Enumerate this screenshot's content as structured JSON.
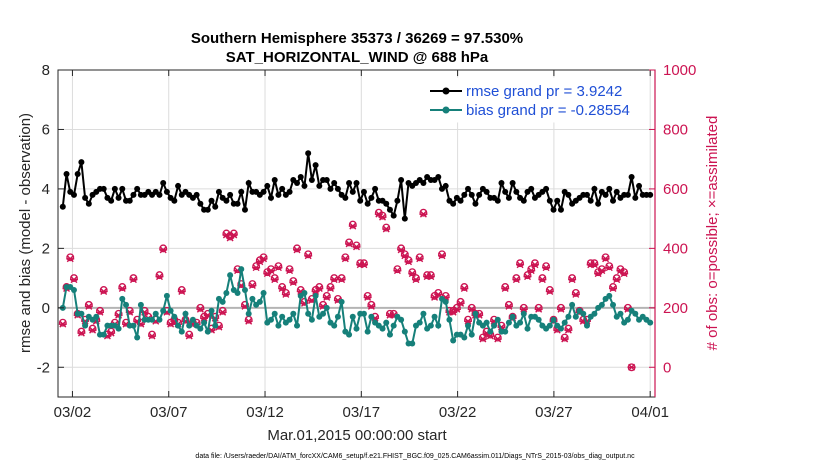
{
  "chart_data": {
    "type": "line",
    "title": "Southern Hemisphere 35373 / 36269 = 97.530%",
    "subtitle": "SAT_HORIZONTAL_WIND @ 688 hPa",
    "xlabel": "Mar.01,2015 00:00:00 start",
    "ylabel": "rmse and bias (model - observation)",
    "ylabel_right": "# of obs: o=possible; ×=assimilated",
    "footer": "data file: /Users/raeder/DAI/ATM_forcXX/CAM6_setup/f.e21.FHIST_BGC.f09_025.CAM6assim.011/Diags_NTrS_2015-03/obs_diag_output.nc",
    "x_tick_labels": [
      "03/02",
      "03/07",
      "03/12",
      "03/17",
      "03/22",
      "03/27",
      "04/01"
    ],
    "x_tick_days": [
      1,
      6,
      11,
      16,
      21,
      26,
      31
    ],
    "xlim": [
      0.25,
      31.25
    ],
    "ylim": [
      -3,
      8
    ],
    "y_ticks": [
      "-2",
      "0",
      "2",
      "4",
      "6",
      "8"
    ],
    "ylim_right": [
      -100,
      1000
    ],
    "y_ticks_right": [
      "0",
      "200",
      "400",
      "600",
      "800",
      "1000"
    ],
    "grid": true,
    "legend_position": "top-right",
    "zero_line": 0,
    "series": [
      {
        "name": "rmse grand pr = 3.9242",
        "color": "#000000",
        "axis": "left",
        "marker": "circle",
        "values": [
          3.4,
          4.5,
          3.9,
          3.8,
          4.5,
          4.9,
          3.7,
          3.5,
          3.8,
          3.9,
          4.0,
          4.0,
          3.7,
          3.6,
          4.0,
          3.7,
          4.0,
          3.6,
          3.6,
          3.8,
          4.0,
          3.8,
          3.8,
          3.9,
          3.8,
          3.9,
          3.8,
          4.2,
          3.9,
          3.7,
          3.6,
          4.1,
          3.8,
          3.9,
          3.8,
          3.7,
          3.8,
          3.5,
          3.3,
          3.3,
          3.6,
          3.4,
          3.9,
          3.7,
          3.6,
          3.8,
          3.5,
          3.5,
          3.9,
          3.3,
          4.2,
          3.9,
          3.9,
          3.8,
          3.9,
          4.1,
          3.7,
          4.3,
          3.8,
          4.0,
          3.8,
          3.9,
          4.3,
          4.2,
          4.4,
          4.1,
          5.2,
          4.3,
          4.8,
          4.1,
          4.3,
          4.3,
          4.0,
          4.2,
          4.0,
          3.8,
          3.7,
          4.2,
          3.9,
          4.2,
          3.6,
          3.9,
          3.5,
          3.7,
          4.0,
          3.6,
          3.6,
          3.5,
          3.3,
          3.1,
          3.6,
          4.3,
          3.0,
          4.2,
          4.1,
          4.2,
          4.3,
          4.2,
          4.4,
          4.3,
          4.3,
          4.4,
          4.0,
          4.1,
          3.6,
          3.5,
          3.7,
          3.6,
          3.8,
          4.0,
          3.8,
          3.5,
          3.8,
          4.0,
          3.9,
          3.7,
          3.7,
          3.6,
          4.2,
          3.9,
          3.7,
          4.2,
          3.9,
          3.7,
          3.6,
          3.9,
          4.0,
          3.7,
          3.8,
          3.9,
          4.0,
          3.6,
          3.3,
          3.6,
          3.3,
          3.9,
          3.8,
          3.5,
          3.6,
          3.7,
          3.8,
          3.8,
          3.6,
          4.0,
          3.5,
          3.9,
          3.8,
          4.0,
          3.6,
          3.9,
          3.7,
          3.8,
          3.8,
          4.4,
          3.7,
          4.1,
          3.8,
          3.8,
          3.8
        ]
      },
      {
        "name": "bias grand pr = -0.28554",
        "color": "#16807a",
        "axis": "left",
        "marker": "circle",
        "values": [
          0.0,
          0.7,
          0.7,
          0.6,
          -0.2,
          -0.2,
          -0.6,
          -0.3,
          -0.4,
          -0.3,
          -0.9,
          -0.9,
          -0.6,
          -0.6,
          -0.6,
          -0.7,
          0.3,
          0.1,
          -0.6,
          -0.6,
          -1.0,
          0.1,
          -0.4,
          -0.4,
          -0.4,
          -0.2,
          -0.4,
          -0.1,
          0.4,
          -0.1,
          -0.3,
          -0.6,
          -0.8,
          -0.2,
          -0.6,
          -0.4,
          -0.6,
          -0.7,
          -0.5,
          -0.8,
          -0.1,
          -0.6,
          0.3,
          0.2,
          0.5,
          1.1,
          0.6,
          0.5,
          1.3,
          0.6,
          -0.2,
          0.3,
          0.1,
          0.2,
          0.5,
          -0.5,
          -0.4,
          -0.2,
          -0.6,
          -0.3,
          -0.5,
          -0.4,
          -0.2,
          -0.6,
          0.4,
          0.5,
          -0.2,
          -0.4,
          0.4,
          -0.3,
          -0.2,
          0.0,
          -0.5,
          -0.6,
          -0.3,
          0.2,
          -0.8,
          -0.9,
          -0.3,
          -0.7,
          -0.2,
          -0.2,
          -0.8,
          -0.3,
          -0.5,
          -0.6,
          -0.7,
          -0.5,
          -0.9,
          -0.6,
          -0.3,
          -0.4,
          -0.8,
          -1.2,
          -1.2,
          -0.6,
          -0.5,
          -0.2,
          -0.7,
          -0.6,
          -0.3,
          -0.6,
          0.3,
          0.2,
          -0.4,
          -1.1,
          -0.9,
          -0.9,
          -1.0,
          -0.6,
          -0.9,
          -0.2,
          -0.5,
          -0.6,
          -0.5,
          -0.8,
          -0.6,
          -0.4,
          -0.8,
          -0.8,
          -0.5,
          -0.3,
          -0.6,
          -0.5,
          -0.2,
          -0.7,
          -0.3,
          -0.3,
          -0.4,
          -0.6,
          -0.7,
          -0.6,
          -0.4,
          -0.6,
          -0.7,
          -0.5,
          -0.3,
          0.1,
          -0.3,
          -0.1,
          -0.2,
          -0.6,
          -0.3,
          -0.2,
          0.0,
          0.1,
          0.3,
          0.4,
          0.1,
          -0.3,
          -0.2,
          -0.5,
          -0.4,
          -0.1,
          -0.2,
          -0.4,
          -0.3,
          -0.4,
          -0.5
        ]
      },
      {
        "name": "obs possible",
        "color": "#cc1452",
        "axis": "right",
        "marker": "o",
        "values": [
          150,
          270,
          370,
          300,
          180,
          120,
          160,
          210,
          130,
          160,
          190,
          260,
          110,
          120,
          150,
          180,
          270,
          150,
          190,
          300,
          160,
          150,
          190,
          170,
          110,
          160,
          310,
          400,
          190,
          150,
          160,
          150,
          260,
          160,
          110,
          150,
          150,
          200,
          170,
          180,
          130,
          170,
          140,
          190,
          450,
          440,
          450,
          330,
          280,
          210,
          160,
          280,
          340,
          360,
          370,
          320,
          330,
          300,
          340,
          270,
          250,
          330,
          290,
          400,
          260,
          220,
          380,
          230,
          260,
          270,
          210,
          240,
          270,
          300,
          230,
          300,
          370,
          420,
          480,
          410,
          350,
          350,
          240,
          210,
          170,
          520,
          510,
          470,
          180,
          180,
          330,
          400,
          380,
          360,
          320,
          300,
          370,
          520,
          310,
          310,
          240,
          250,
          380,
          240,
          190,
          190,
          200,
          220,
          270,
          160,
          200,
          180,
          180,
          100,
          120,
          110,
          160,
          100,
          140,
          270,
          210,
          170,
          300,
          350,
          200,
          310,
          330,
          350,
          200,
          300,
          340,
          260,
          160,
          130,
          200,
          100,
          130,
          300,
          250,
          190,
          160,
          160,
          350,
          350,
          320,
          330,
          370,
          340,
          270,
          300,
          330,
          320,
          200,
          0
        ]
      },
      {
        "name": "obs assimilated",
        "color": "#cc1452",
        "axis": "right",
        "marker": "x",
        "values": [
          145,
          265,
          365,
          295,
          175,
          115,
          155,
          205,
          125,
          155,
          185,
          255,
          105,
          115,
          145,
          175,
          265,
          145,
          185,
          295,
          155,
          145,
          185,
          165,
          105,
          155,
          305,
          395,
          185,
          145,
          155,
          145,
          255,
          155,
          105,
          145,
          145,
          195,
          165,
          175,
          125,
          165,
          135,
          185,
          445,
          435,
          445,
          325,
          275,
          205,
          155,
          275,
          335,
          355,
          365,
          315,
          325,
          295,
          335,
          265,
          245,
          325,
          285,
          395,
          255,
          215,
          375,
          225,
          255,
          265,
          205,
          235,
          265,
          295,
          225,
          295,
          365,
          415,
          475,
          405,
          345,
          345,
          235,
          205,
          165,
          515,
          505,
          465,
          175,
          175,
          325,
          395,
          375,
          355,
          315,
          295,
          365,
          515,
          305,
          305,
          235,
          245,
          375,
          235,
          185,
          185,
          195,
          215,
          265,
          155,
          195,
          175,
          175,
          95,
          115,
          105,
          155,
          95,
          135,
          265,
          205,
          165,
          295,
          345,
          195,
          305,
          325,
          345,
          195,
          295,
          335,
          255,
          155,
          125,
          195,
          95,
          125,
          295,
          245,
          185,
          155,
          155,
          345,
          345,
          315,
          325,
          365,
          335,
          265,
          295,
          325,
          315,
          195,
          0
        ]
      }
    ]
  }
}
